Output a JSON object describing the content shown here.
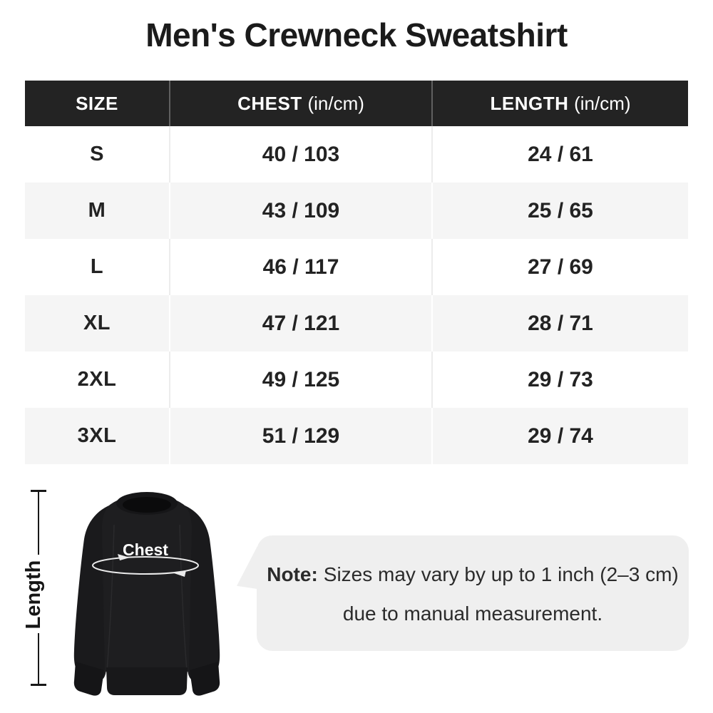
{
  "title": "Men's Crewneck Sweatshirt",
  "size_chart": {
    "columns": [
      {
        "label": "SIZE",
        "unit": ""
      },
      {
        "label": "CHEST",
        "unit": "(in/cm)"
      },
      {
        "label": "LENGTH",
        "unit": "(in/cm)"
      }
    ],
    "rows": [
      {
        "size": "S",
        "chest": "40 / 103",
        "length": "24 / 61"
      },
      {
        "size": "M",
        "chest": "43 / 109",
        "length": "25 / 65"
      },
      {
        "size": "L",
        "chest": "46 / 117",
        "length": "27 / 69"
      },
      {
        "size": "XL",
        "chest": "47 / 121",
        "length": "28 / 71"
      },
      {
        "size": "2XL",
        "chest": "49 / 125",
        "length": "29 / 73"
      },
      {
        "size": "3XL",
        "chest": "51 / 129",
        "length": "29 / 74"
      }
    ]
  },
  "chart_data": {
    "type": "table",
    "title": "Men's Crewneck Sweatshirt",
    "columns": [
      "SIZE",
      "CHEST (in/cm)",
      "LENGTH (in/cm)"
    ],
    "rows": [
      [
        "S",
        "40 / 103",
        "24 / 61"
      ],
      [
        "M",
        "43 / 109",
        "25 / 65"
      ],
      [
        "L",
        "46 / 117",
        "27 / 69"
      ],
      [
        "XL",
        "47 / 121",
        "28 / 71"
      ],
      [
        "2XL",
        "49 / 125",
        "29 / 73"
      ],
      [
        "3XL",
        "51 / 129",
        "29 / 74"
      ]
    ],
    "annotations": [
      "Chest",
      "Length"
    ]
  },
  "diagram": {
    "length_label": "Length",
    "chest_label": "Chest"
  },
  "note": {
    "label": "Note:",
    "text": "Sizes may vary by up to 1 inch (2–3 cm)",
    "line2": "due to manual measurement."
  },
  "colors": {
    "header_bg": "#232323",
    "header_text": "#ffffff",
    "row_alt_bg": "#f5f5f5",
    "body_text": "#232323",
    "note_bubble_bg": "#efefef",
    "sweatshirt": "#1e1e20"
  }
}
